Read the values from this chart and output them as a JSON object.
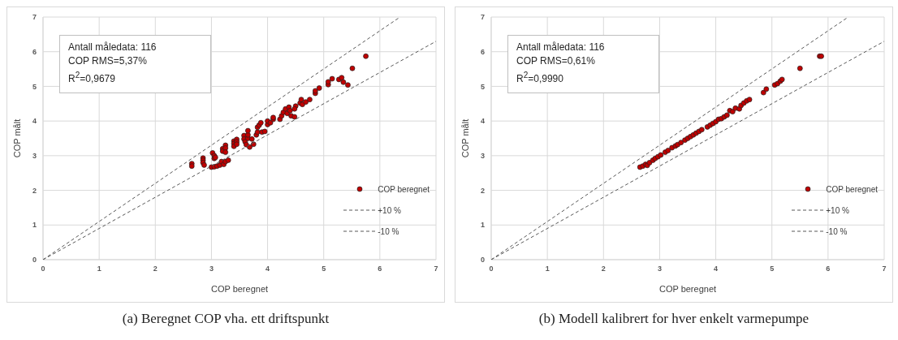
{
  "chart_data": [
    {
      "type": "scatter",
      "title": "(a) Beregnet COP vha. ett driftspunkt",
      "xlabel": "COP beregnet",
      "ylabel": "COP målt",
      "annotations": [
        "Antall måledata: 116",
        "COP RMS=5,37%",
        "R$^{2}$=0,9679"
      ],
      "xlim": [
        0,
        7
      ],
      "ylim": [
        0,
        7
      ],
      "xticks": [
        0,
        1,
        2,
        3,
        4,
        5,
        6,
        7
      ],
      "yticks": [
        0,
        1,
        2,
        3,
        4,
        5,
        6,
        7
      ],
      "grid": true,
      "legend": "bottom right",
      "series": [
        {
          "name": "COP beregnet",
          "type": "scatter",
          "color": "#c00000",
          "marker": "circle",
          "x": [
            2.65,
            2.65,
            2.85,
            2.85,
            2.85,
            2.87,
            3.02,
            3.05,
            3.05,
            3.07,
            3.0,
            3.05,
            3.1,
            3.15,
            3.18,
            3.22,
            3.25,
            3.3,
            3.2,
            3.2,
            3.25,
            3.25,
            3.25,
            3.4,
            3.4,
            3.4,
            3.45,
            3.45,
            3.45,
            3.58,
            3.58,
            3.6,
            3.62,
            3.65,
            3.65,
            3.65,
            3.68,
            3.72,
            3.75,
            3.8,
            3.82,
            3.82,
            3.85,
            3.88,
            3.9,
            3.95,
            4.0,
            4.0,
            4.05,
            4.1,
            4.1,
            4.22,
            4.25,
            4.28,
            4.32,
            4.35,
            4.38,
            4.4,
            4.42,
            4.48,
            4.5,
            4.48,
            4.58,
            4.6,
            4.62,
            4.68,
            4.75,
            4.85,
            4.85,
            4.92,
            5.08,
            5.08,
            5.15,
            5.27,
            5.32,
            5.35,
            5.43,
            5.51,
            5.75
          ],
          "values": [
            2.77,
            2.7,
            2.93,
            2.87,
            2.8,
            2.73,
            3.08,
            3.0,
            2.92,
            2.95,
            2.67,
            2.68,
            2.7,
            2.73,
            2.83,
            2.75,
            2.83,
            2.87,
            3.2,
            3.13,
            3.3,
            3.22,
            3.1,
            3.42,
            3.35,
            3.27,
            3.47,
            3.4,
            3.33,
            3.58,
            3.48,
            3.4,
            3.32,
            3.5,
            3.6,
            3.72,
            3.25,
            3.48,
            3.33,
            3.6,
            3.68,
            3.82,
            3.88,
            3.95,
            3.68,
            3.7,
            3.9,
            4.0,
            3.95,
            4.05,
            4.1,
            4.05,
            4.15,
            4.25,
            4.35,
            4.22,
            4.4,
            4.3,
            4.15,
            4.12,
            4.43,
            4.35,
            4.52,
            4.62,
            4.48,
            4.55,
            4.62,
            4.8,
            4.87,
            4.95,
            5.05,
            5.13,
            5.22,
            5.2,
            5.25,
            5.12,
            5.04,
            5.52,
            5.87
          ]
        },
        {
          "name": "+10 %",
          "type": "line",
          "color": "#595959",
          "marker": "none",
          "line_style": "dashed",
          "x": [
            0,
            6.36
          ],
          "values": [
            0,
            7.0
          ]
        },
        {
          "name": "-10 %",
          "type": "line",
          "color": "#595959",
          "marker": "none",
          "line_style": "dashed",
          "x": [
            0,
            7
          ],
          "values": [
            0,
            6.3
          ]
        }
      ]
    },
    {
      "type": "scatter",
      "title": "(b) Modell kalibrert for hver enkelt varmepumpe",
      "xlabel": "COP beregnet",
      "ylabel": "COP målt",
      "annotations": [
        "Antall måledata: 116",
        "COP RMS=0,61%",
        "R$^{2}$=0,9990"
      ],
      "xlim": [
        0,
        7
      ],
      "ylim": [
        0,
        7
      ],
      "xticks": [
        0,
        1,
        2,
        3,
        4,
        5,
        6,
        7
      ],
      "yticks": [
        0,
        1,
        2,
        3,
        4,
        5,
        6,
        7
      ],
      "grid": true,
      "legend": "bottom right",
      "series": [
        {
          "name": "COP beregnet",
          "type": "scatter",
          "color": "#c00000",
          "marker": "circle",
          "x": [
            2.65,
            2.7,
            2.75,
            2.78,
            2.82,
            2.88,
            2.92,
            2.97,
            3.02,
            3.1,
            3.15,
            3.22,
            3.28,
            3.32,
            3.38,
            3.45,
            3.5,
            3.55,
            3.6,
            3.65,
            3.7,
            3.75,
            3.85,
            3.9,
            3.95,
            4.0,
            4.05,
            4.1,
            4.15,
            4.2,
            4.25,
            4.3,
            4.35,
            4.42,
            4.45,
            4.5,
            4.55,
            4.6,
            4.85,
            4.9,
            5.05,
            5.1,
            5.15,
            5.18,
            5.5,
            5.85,
            5.88
          ],
          "values": [
            2.67,
            2.7,
            2.75,
            2.72,
            2.8,
            2.87,
            2.92,
            2.97,
            3.02,
            3.1,
            3.15,
            3.23,
            3.28,
            3.32,
            3.38,
            3.45,
            3.5,
            3.55,
            3.6,
            3.65,
            3.7,
            3.75,
            3.83,
            3.88,
            3.93,
            3.98,
            4.05,
            4.07,
            4.12,
            4.17,
            4.3,
            4.27,
            4.37,
            4.35,
            4.45,
            4.52,
            4.58,
            4.62,
            4.82,
            4.92,
            5.04,
            5.08,
            5.15,
            5.2,
            5.52,
            5.87,
            5.87
          ]
        },
        {
          "name": "+10 %",
          "type": "line",
          "color": "#595959",
          "marker": "none",
          "line_style": "dashed",
          "x": [
            0,
            6.36
          ],
          "values": [
            0,
            7.0
          ]
        },
        {
          "name": "-10 %",
          "type": "line",
          "color": "#595959",
          "marker": "none",
          "line_style": "dashed",
          "x": [
            0,
            7
          ],
          "values": [
            0,
            6.3
          ]
        }
      ]
    }
  ]
}
